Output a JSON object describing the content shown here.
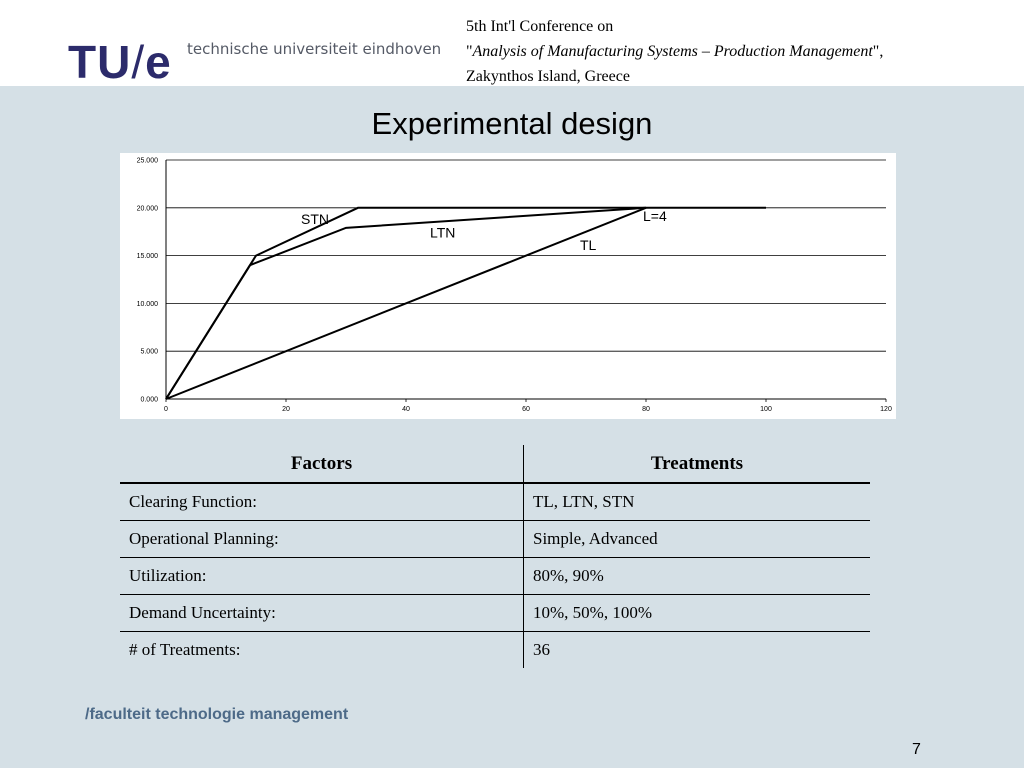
{
  "header": {
    "logo_main": "TU",
    "logo_slash": "/",
    "logo_e": "e",
    "university": "technische universiteit eindhoven",
    "conf_line1": "5th Int'l Conference on",
    "conf_quote_open": "\"",
    "conf_line2": "Analysis of Manufacturing Systems – Production Management",
    "conf_quote_close": "\",",
    "conf_line3": "Zakynthos Island, Greece"
  },
  "slide": {
    "title": "Experimental design",
    "footer": "/faculteit technologie management",
    "page_number": "7"
  },
  "chart_data": {
    "type": "line",
    "title": "",
    "xlabel": "",
    "ylabel": "",
    "xlim": [
      0,
      120
    ],
    "ylim": [
      0,
      25
    ],
    "x_ticks": [
      "0",
      "20",
      "40",
      "60",
      "80",
      "100",
      "120"
    ],
    "y_ticks": [
      "0.000",
      "5.000",
      "10.000",
      "15.000",
      "20.000",
      "25.000"
    ],
    "grid": "horizontal",
    "series": [
      {
        "name": "STN",
        "points": [
          [
            0,
            0
          ],
          [
            15,
            15
          ],
          [
            32,
            20
          ],
          [
            100,
            20
          ]
        ]
      },
      {
        "name": "LTN",
        "points": [
          [
            0,
            0
          ],
          [
            14,
            14
          ],
          [
            30,
            17.9
          ],
          [
            80,
            20
          ]
        ]
      },
      {
        "name": "TL",
        "points": [
          [
            0,
            0
          ],
          [
            80,
            20
          ]
        ]
      }
    ],
    "annotations": [
      {
        "text": "STN",
        "x": 22.5,
        "y": 18.3
      },
      {
        "text": "LTN",
        "x": 44,
        "y": 16.9
      },
      {
        "text": "TL",
        "x": 69,
        "y": 15.6
      },
      {
        "text": "L=4",
        "x": 79.5,
        "y": 18.6
      }
    ]
  },
  "table": {
    "headers": [
      "Factors",
      "Treatments"
    ],
    "rows": [
      [
        "Clearing Function:",
        "TL, LTN, STN"
      ],
      [
        "Operational Planning:",
        "Simple, Advanced"
      ],
      [
        "Utilization:",
        "80%, 90%"
      ],
      [
        "Demand Uncertainty:",
        "10%, 50%, 100%"
      ],
      [
        "# of Treatments:",
        "36"
      ]
    ]
  }
}
